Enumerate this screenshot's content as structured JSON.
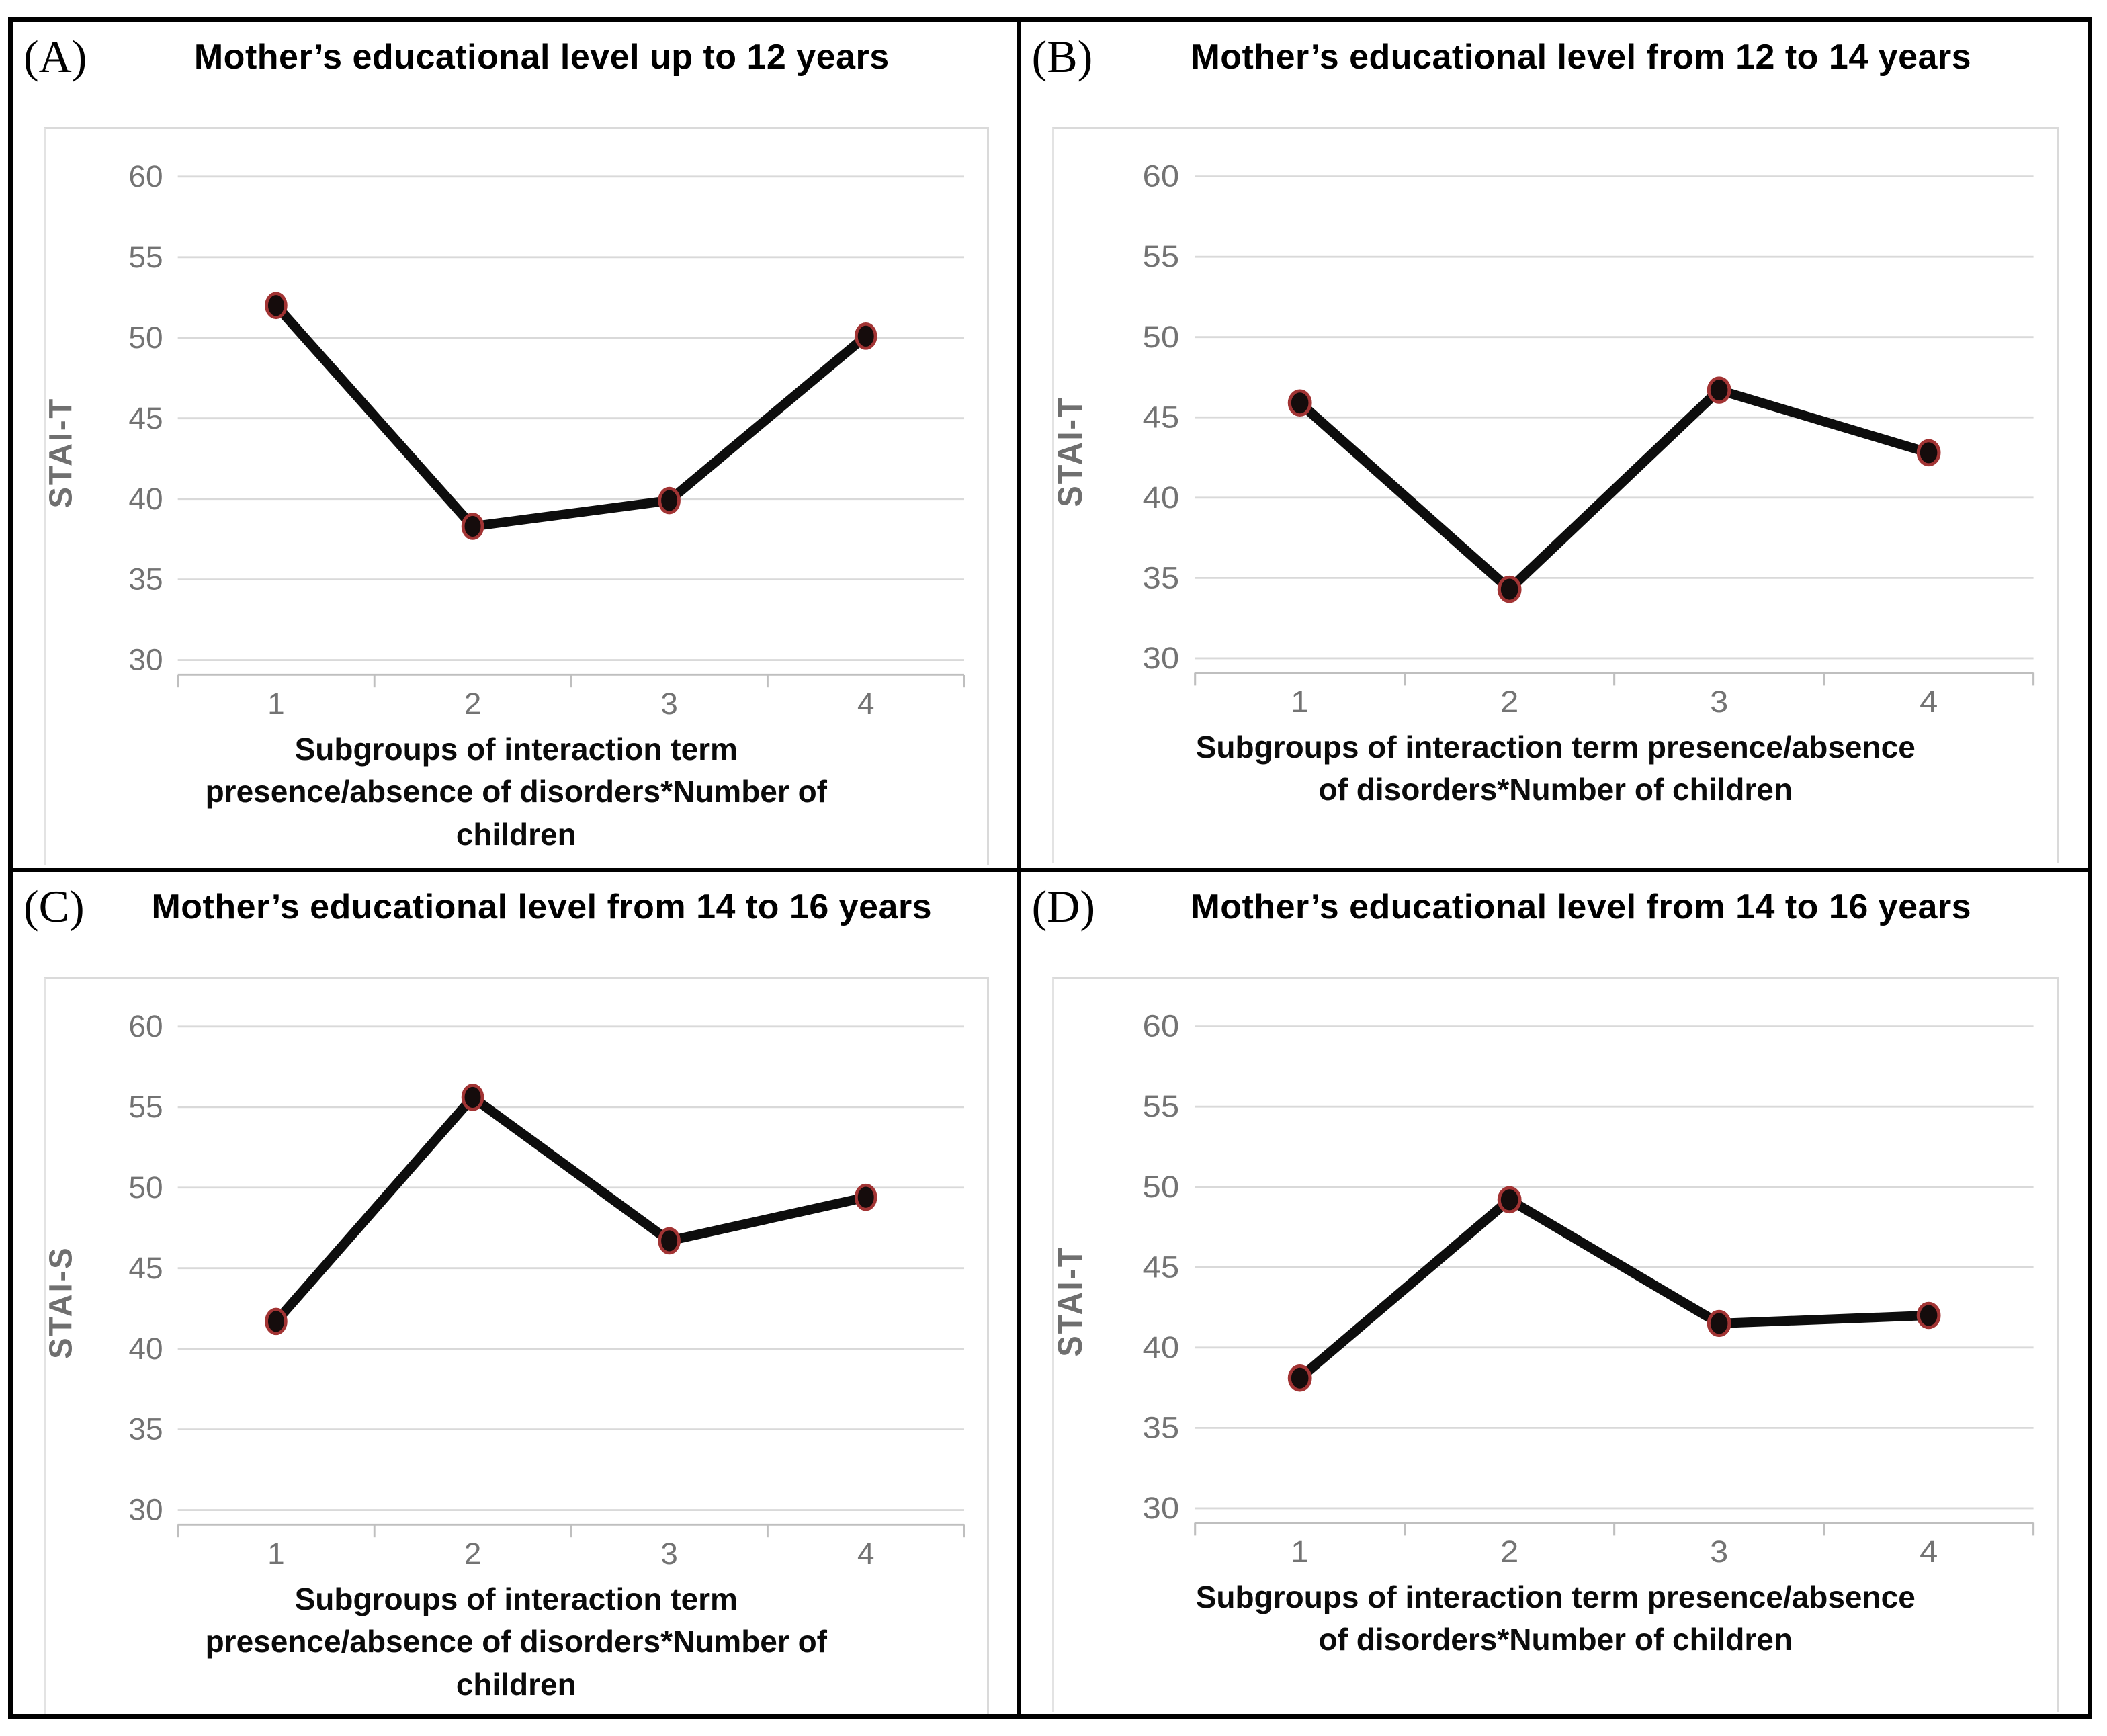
{
  "figure": {
    "kind": "2x2 multi-panel line figure",
    "shared_xlabel": "Subgroups of interaction term presence/absence of disorders*Number of children"
  },
  "colors": {
    "line": "#0d0d0d",
    "marker_fill": "#150c0c",
    "marker_ring": "#a23434",
    "gridline": "#d9d9d9",
    "axis_line": "#bfbfbf",
    "tick_text": "#737373",
    "axis_label_text": "#6f6f6f",
    "title_text": "#000000",
    "panel_border": "#000000"
  },
  "chart_data": [
    {
      "type": "line",
      "panel_label": "(A)",
      "title": "Mother’s educational level up to 12 years",
      "ylabel": "STAI-T",
      "xlabel": "Subgroups of interaction term presence/absence of disorders*Number of children",
      "categories": [
        "1",
        "2",
        "3",
        "4"
      ],
      "values": [
        52.0,
        38.3,
        39.9,
        50.1
      ],
      "yticks": [
        30,
        35,
        40,
        45,
        50,
        55,
        60
      ],
      "ylim": [
        28,
        62
      ],
      "grid": true,
      "legend": "none"
    },
    {
      "type": "line",
      "panel_label": "(B)",
      "title": "Mother’s educational level from 12 to 14 years",
      "ylabel": "STAI-T",
      "xlabel": "Subgroups of interaction term presence/absence of disorders*Number of children",
      "categories": [
        "1",
        "2",
        "3",
        "4"
      ],
      "values": [
        45.9,
        34.3,
        46.7,
        42.8
      ],
      "yticks": [
        30,
        35,
        40,
        45,
        50,
        55,
        60
      ],
      "ylim": [
        28,
        62
      ],
      "grid": true,
      "legend": "none"
    },
    {
      "type": "line",
      "panel_label": "(C)",
      "title": "Mother’s educational level from 14 to 16 years",
      "ylabel": "STAI-S",
      "xlabel": "Subgroups of interaction term presence/absence of disorders*Number of children",
      "categories": [
        "1",
        "2",
        "3",
        "4"
      ],
      "values": [
        41.7,
        55.6,
        46.7,
        49.4
      ],
      "yticks": [
        30,
        35,
        40,
        45,
        50,
        55,
        60
      ],
      "ylim": [
        28,
        62
      ],
      "grid": true,
      "legend": "none"
    },
    {
      "type": "line",
      "panel_label": "(D)",
      "title": "Mother’s educational level from 14 to 16 years",
      "ylabel": "STAI-T",
      "xlabel": "Subgroups of interaction term presence/absence of disorders*Number of children",
      "categories": [
        "1",
        "2",
        "3",
        "4"
      ],
      "values": [
        38.1,
        49.2,
        41.5,
        42.0
      ],
      "yticks": [
        30,
        35,
        40,
        45,
        50,
        55,
        60
      ],
      "ylim": [
        28,
        62
      ],
      "grid": true,
      "legend": "none"
    }
  ]
}
